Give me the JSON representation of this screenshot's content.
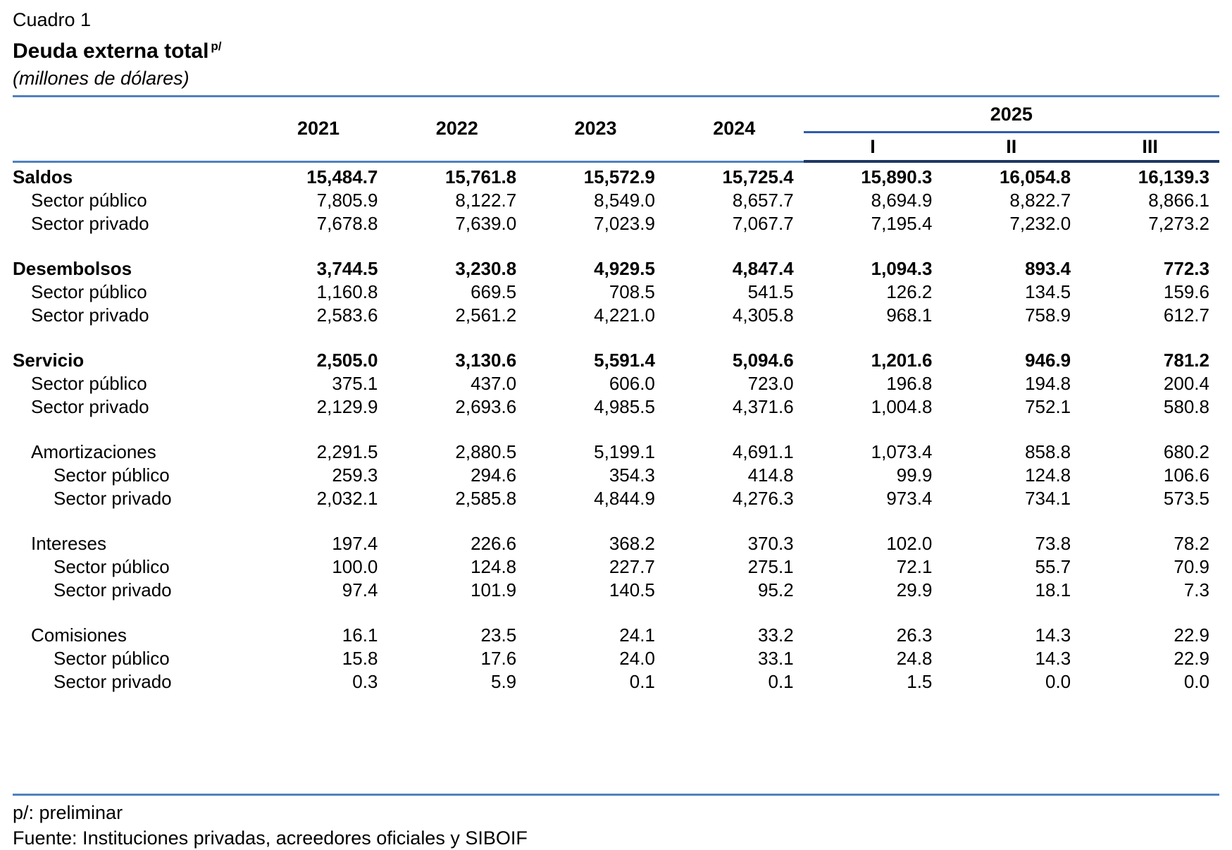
{
  "title": {
    "pretitle": "Cuadro 1",
    "main": "Deuda externa total",
    "superscript": "p/",
    "subtitle": "(millones de dólares)"
  },
  "header": {
    "years": [
      "2021",
      "2022",
      "2023",
      "2024"
    ],
    "group_year": "2025",
    "quarters": [
      "I",
      "II",
      "III"
    ]
  },
  "rows": [
    {
      "label": "Saldos",
      "style": "bold",
      "indent": 0,
      "values": [
        "15,484.7",
        "15,761.8",
        "15,572.9",
        "15,725.4",
        "15,890.3",
        "16,054.8",
        "16,139.3"
      ]
    },
    {
      "label": "Sector público",
      "style": "normal",
      "indent": 1,
      "values": [
        "7,805.9",
        "8,122.7",
        "8,549.0",
        "8,657.7",
        "8,694.9",
        "8,822.7",
        "8,866.1"
      ]
    },
    {
      "label": "Sector privado",
      "style": "normal",
      "indent": 1,
      "values": [
        "7,678.8",
        "7,639.0",
        "7,023.9",
        "7,067.7",
        "7,195.4",
        "7,232.0",
        "7,273.2"
      ]
    },
    {
      "spacer": true
    },
    {
      "label": "Desembolsos",
      "style": "bold",
      "indent": 0,
      "values": [
        "3,744.5",
        "3,230.8",
        "4,929.5",
        "4,847.4",
        "1,094.3",
        "893.4",
        "772.3"
      ]
    },
    {
      "label": "Sector público",
      "style": "normal",
      "indent": 1,
      "values": [
        "1,160.8",
        "669.5",
        "708.5",
        "541.5",
        "126.2",
        "134.5",
        "159.6"
      ]
    },
    {
      "label": "Sector privado",
      "style": "normal",
      "indent": 1,
      "values": [
        "2,583.6",
        "2,561.2",
        "4,221.0",
        "4,305.8",
        "968.1",
        "758.9",
        "612.7"
      ]
    },
    {
      "spacer": true
    },
    {
      "label": "Servicio",
      "style": "bold",
      "indent": 0,
      "values": [
        "2,505.0",
        "3,130.6",
        "5,591.4",
        "5,094.6",
        "1,201.6",
        "946.9",
        "781.2"
      ]
    },
    {
      "label": "Sector público",
      "style": "normal",
      "indent": 1,
      "values": [
        "375.1",
        "437.0",
        "606.0",
        "723.0",
        "196.8",
        "194.8",
        "200.4"
      ]
    },
    {
      "label": "Sector privado",
      "style": "normal",
      "indent": 1,
      "values": [
        "2,129.9",
        "2,693.6",
        "4,985.5",
        "4,371.6",
        "1,004.8",
        "752.1",
        "580.8"
      ]
    },
    {
      "spacer": true
    },
    {
      "label": "Amortizaciones",
      "style": "normal",
      "indent": 1,
      "values": [
        "2,291.5",
        "2,880.5",
        "5,199.1",
        "4,691.1",
        "1,073.4",
        "858.8",
        "680.2"
      ]
    },
    {
      "label": "Sector público",
      "style": "normal",
      "indent": 2,
      "values": [
        "259.3",
        "294.6",
        "354.3",
        "414.8",
        "99.9",
        "124.8",
        "106.6"
      ]
    },
    {
      "label": "Sector privado",
      "style": "normal",
      "indent": 2,
      "values": [
        "2,032.1",
        "2,585.8",
        "4,844.9",
        "4,276.3",
        "973.4",
        "734.1",
        "573.5"
      ]
    },
    {
      "spacer": true
    },
    {
      "label": "Intereses",
      "style": "normal",
      "indent": 1,
      "values": [
        "197.4",
        "226.6",
        "368.2",
        "370.3",
        "102.0",
        "73.8",
        "78.2"
      ]
    },
    {
      "label": "Sector público",
      "style": "normal",
      "indent": 2,
      "values": [
        "100.0",
        "124.8",
        "227.7",
        "275.1",
        "72.1",
        "55.7",
        "70.9"
      ]
    },
    {
      "label": "Sector privado",
      "style": "normal",
      "indent": 2,
      "values": [
        "97.4",
        "101.9",
        "140.5",
        "95.2",
        "29.9",
        "18.1",
        "7.3"
      ]
    },
    {
      "spacer": true
    },
    {
      "label": "Comisiones",
      "style": "normal",
      "indent": 1,
      "values": [
        "16.1",
        "23.5",
        "24.1",
        "33.2",
        "26.3",
        "14.3",
        "22.9"
      ]
    },
    {
      "label": "Sector público",
      "style": "normal",
      "indent": 2,
      "values": [
        "15.8",
        "17.6",
        "24.0",
        "33.1",
        "24.8",
        "14.3",
        "22.9"
      ]
    },
    {
      "label": "Sector privado",
      "style": "normal",
      "indent": 2,
      "values": [
        "0.3",
        "5.9",
        "0.1",
        "0.1",
        "1.5",
        "0.0",
        "0.0"
      ]
    }
  ],
  "footer": {
    "note": "p/: preliminar",
    "source": "Fuente: Instituciones privadas, acreedores oficiales y SIBOIF"
  },
  "colors": {
    "accent_light": "#4f81bd",
    "accent_mid": "#2e5cac",
    "accent_dark": "#1f3864",
    "text_color": "#000000"
  }
}
